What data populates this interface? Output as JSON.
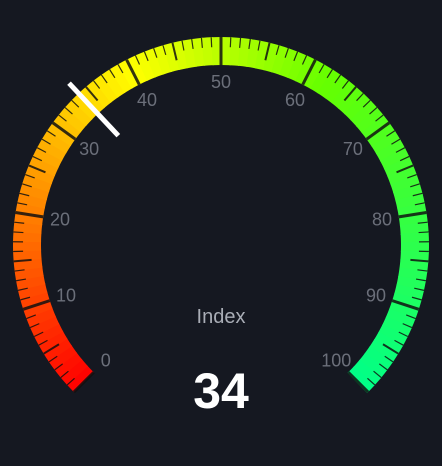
{
  "chart_data": {
    "type": "gauge",
    "title": "Index",
    "value": 34,
    "value_label": "34",
    "min": 0,
    "max": 100,
    "tick_labels": [
      "0",
      "10",
      "20",
      "30",
      "40",
      "50",
      "60",
      "70",
      "80",
      "90",
      "100"
    ],
    "tick_values": [
      0,
      10,
      20,
      30,
      40,
      50,
      60,
      70,
      80,
      90,
      100
    ],
    "colors": {
      "background": "#151821",
      "gradient_start": "#ff0000",
      "gradient_mid": "#ffff00",
      "gradient_upper": "#66ff00",
      "gradient_end": "#00ff88",
      "needle": "#ffffff",
      "tick_label": "#6b6f7a",
      "title": "#a9adb6",
      "value": "#ffffff"
    }
  }
}
